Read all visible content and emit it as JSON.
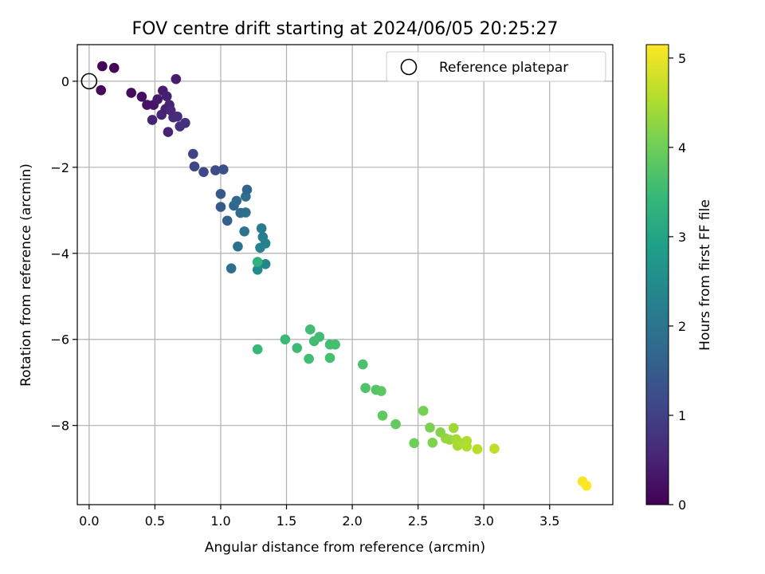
{
  "chart_data": {
    "type": "scatter",
    "title": "FOV centre drift starting at 2024/06/05 20:25:27",
    "xlabel": "Angular distance from reference (arcmin)",
    "ylabel": "Rotation from reference (arcmin)",
    "xlim": [
      -0.09,
      3.98
    ],
    "ylim": [
      -9.84,
      0.85
    ],
    "xticks": [
      0.0,
      0.5,
      1.0,
      1.5,
      2.0,
      2.5,
      3.0,
      3.5
    ],
    "xtick_labels": [
      "0.0",
      "0.5",
      "1.0",
      "1.5",
      "2.0",
      "2.5",
      "3.0",
      "3.5"
    ],
    "yticks": [
      0,
      -2,
      -4,
      -6,
      -8
    ],
    "ytick_labels": [
      "0",
      "−2",
      "−4",
      "−6",
      "−8"
    ],
    "grid": true,
    "legend": {
      "placement": "top-right",
      "entries": [
        "Reference platepar"
      ]
    },
    "reference_point": {
      "x": 0.0,
      "y": 0.0
    },
    "colorbar": {
      "label": "Hours from first FF file",
      "range": [
        0,
        5.15
      ],
      "ticks": [
        0,
        1,
        2,
        3,
        4,
        5
      ],
      "tick_labels": [
        "0",
        "1",
        "2",
        "3",
        "4",
        "5"
      ],
      "colormap": "viridis",
      "colors": [
        "#440154",
        "#482878",
        "#3e4989",
        "#31688e",
        "#26828e",
        "#1f9e89",
        "#35b779",
        "#6ece58",
        "#b5de2b",
        "#fde725"
      ]
    },
    "points": [
      {
        "x": 0.1,
        "y": 0.35,
        "hours": 0.05
      },
      {
        "x": 0.19,
        "y": 0.31,
        "hours": 0.08
      },
      {
        "x": 0.09,
        "y": -0.21,
        "hours": 0.1
      },
      {
        "x": 0.32,
        "y": -0.27,
        "hours": 0.15
      },
      {
        "x": 0.4,
        "y": -0.36,
        "hours": 0.2
      },
      {
        "x": 0.44,
        "y": -0.55,
        "hours": 0.25
      },
      {
        "x": 0.49,
        "y": -0.55,
        "hours": 0.3
      },
      {
        "x": 0.52,
        "y": -0.42,
        "hours": 0.35
      },
      {
        "x": 0.56,
        "y": -0.22,
        "hours": 0.4
      },
      {
        "x": 0.59,
        "y": -0.35,
        "hours": 0.45
      },
      {
        "x": 0.48,
        "y": -0.9,
        "hours": 0.5
      },
      {
        "x": 0.55,
        "y": -0.78,
        "hours": 0.52
      },
      {
        "x": 0.61,
        "y": -0.55,
        "hours": 0.55
      },
      {
        "x": 0.66,
        "y": 0.05,
        "hours": 0.4
      },
      {
        "x": 0.6,
        "y": -1.18,
        "hours": 0.5
      },
      {
        "x": 0.64,
        "y": -0.84,
        "hours": 0.6
      },
      {
        "x": 0.67,
        "y": -0.82,
        "hours": 0.65
      },
      {
        "x": 0.69,
        "y": -1.05,
        "hours": 0.7
      },
      {
        "x": 0.73,
        "y": -0.97,
        "hours": 0.75
      },
      {
        "x": 0.58,
        "y": -0.65,
        "hours": 0.48
      },
      {
        "x": 0.62,
        "y": -0.68,
        "hours": 0.58
      },
      {
        "x": 0.79,
        "y": -1.69,
        "hours": 1.05
      },
      {
        "x": 0.8,
        "y": -1.98,
        "hours": 1.1
      },
      {
        "x": 0.87,
        "y": -2.11,
        "hours": 1.15
      },
      {
        "x": 0.96,
        "y": -2.07,
        "hours": 1.2
      },
      {
        "x": 1.02,
        "y": -2.05,
        "hours": 1.25
      },
      {
        "x": 1.0,
        "y": -2.62,
        "hours": 1.4
      },
      {
        "x": 1.0,
        "y": -2.92,
        "hours": 1.45
      },
      {
        "x": 1.05,
        "y": -3.24,
        "hours": 1.55
      },
      {
        "x": 1.1,
        "y": -2.89,
        "hours": 1.7
      },
      {
        "x": 1.12,
        "y": -2.78,
        "hours": 1.75
      },
      {
        "x": 1.15,
        "y": -3.06,
        "hours": 1.8
      },
      {
        "x": 1.19,
        "y": -2.68,
        "hours": 1.85
      },
      {
        "x": 1.2,
        "y": -2.52,
        "hours": 1.65
      },
      {
        "x": 1.19,
        "y": -3.05,
        "hours": 1.9
      },
      {
        "x": 1.18,
        "y": -3.49,
        "hours": 1.95
      },
      {
        "x": 1.13,
        "y": -3.84,
        "hours": 1.9
      },
      {
        "x": 1.08,
        "y": -4.35,
        "hours": 1.85
      },
      {
        "x": 1.31,
        "y": -3.42,
        "hours": 2.15
      },
      {
        "x": 1.32,
        "y": -3.62,
        "hours": 2.2
      },
      {
        "x": 1.34,
        "y": -3.77,
        "hours": 2.25
      },
      {
        "x": 1.3,
        "y": -3.87,
        "hours": 2.3
      },
      {
        "x": 1.34,
        "y": -4.25,
        "hours": 2.35
      },
      {
        "x": 1.28,
        "y": -4.38,
        "hours": 2.45
      },
      {
        "x": 1.28,
        "y": -4.2,
        "hours": 3.3
      },
      {
        "x": 1.28,
        "y": -6.23,
        "hours": 3.45
      },
      {
        "x": 1.49,
        "y": -6.0,
        "hours": 3.5
      },
      {
        "x": 1.58,
        "y": -6.2,
        "hours": 3.5
      },
      {
        "x": 1.68,
        "y": -5.77,
        "hours": 3.55
      },
      {
        "x": 1.71,
        "y": -6.04,
        "hours": 3.55
      },
      {
        "x": 1.75,
        "y": -5.94,
        "hours": 3.55
      },
      {
        "x": 1.67,
        "y": -6.45,
        "hours": 3.55
      },
      {
        "x": 1.83,
        "y": -6.12,
        "hours": 3.6
      },
      {
        "x": 1.87,
        "y": -6.12,
        "hours": 3.6
      },
      {
        "x": 1.83,
        "y": -6.43,
        "hours": 3.6
      },
      {
        "x": 2.08,
        "y": -6.58,
        "hours": 3.65
      },
      {
        "x": 2.1,
        "y": -7.13,
        "hours": 3.7
      },
      {
        "x": 2.18,
        "y": -7.17,
        "hours": 3.75
      },
      {
        "x": 2.22,
        "y": -7.2,
        "hours": 3.8
      },
      {
        "x": 2.23,
        "y": -7.77,
        "hours": 3.85
      },
      {
        "x": 2.33,
        "y": -7.97,
        "hours": 3.9
      },
      {
        "x": 2.47,
        "y": -8.41,
        "hours": 4.0
      },
      {
        "x": 2.54,
        "y": -7.66,
        "hours": 4.05
      },
      {
        "x": 2.59,
        "y": -8.05,
        "hours": 4.1
      },
      {
        "x": 2.61,
        "y": -8.4,
        "hours": 4.15
      },
      {
        "x": 2.67,
        "y": -8.16,
        "hours": 4.2
      },
      {
        "x": 2.71,
        "y": -8.3,
        "hours": 4.3
      },
      {
        "x": 2.74,
        "y": -8.33,
        "hours": 4.35
      },
      {
        "x": 2.77,
        "y": -8.06,
        "hours": 4.4
      },
      {
        "x": 2.79,
        "y": -8.32,
        "hours": 4.45
      },
      {
        "x": 2.8,
        "y": -8.47,
        "hours": 4.45
      },
      {
        "x": 2.84,
        "y": -8.41,
        "hours": 4.5
      },
      {
        "x": 2.87,
        "y": -8.36,
        "hours": 4.5
      },
      {
        "x": 2.87,
        "y": -8.49,
        "hours": 4.55
      },
      {
        "x": 2.95,
        "y": -8.55,
        "hours": 4.6
      },
      {
        "x": 3.08,
        "y": -8.54,
        "hours": 4.65
      },
      {
        "x": 3.75,
        "y": -9.3,
        "hours": 5.1
      },
      {
        "x": 3.78,
        "y": -9.4,
        "hours": 5.15
      }
    ]
  }
}
